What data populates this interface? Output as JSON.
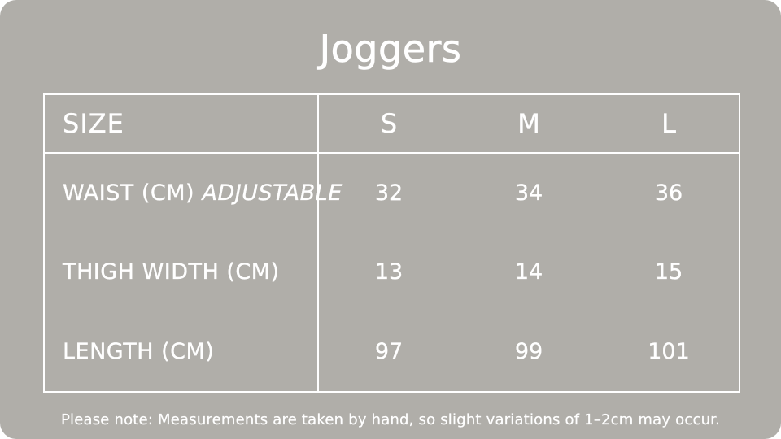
{
  "card": {
    "background": "#B0AEA9",
    "text_color": "#FFFFFF",
    "title": "Joggers"
  },
  "size_chart": {
    "header": {
      "label": "SIZE",
      "columns": [
        "S",
        "M",
        "L"
      ]
    },
    "rows": [
      {
        "label": "WAIST (CM)",
        "note": "ADJUSTABLE",
        "values": [
          "32",
          "34",
          "36"
        ]
      },
      {
        "label": "THIGH WIDTH (CM)",
        "note": "",
        "values": [
          "13",
          "14",
          "15"
        ]
      },
      {
        "label": "LENGTH (CM)",
        "note": "",
        "values": [
          "97",
          "99",
          "101"
        ]
      }
    ]
  },
  "footer_note": "Please note: Measurements are taken by hand, so slight variations of 1–2cm may occur."
}
